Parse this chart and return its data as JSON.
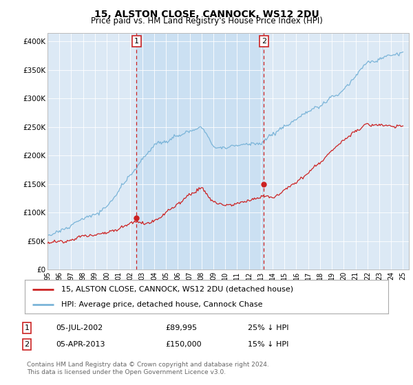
{
  "title": "15, ALSTON CLOSE, CANNOCK, WS12 2DU",
  "subtitle": "Price paid vs. HM Land Registry's House Price Index (HPI)",
  "ylabel_ticks": [
    "£0",
    "£50K",
    "£100K",
    "£150K",
    "£200K",
    "£250K",
    "£300K",
    "£350K",
    "£400K"
  ],
  "ylim": [
    0,
    415000
  ],
  "xlim_start": 1995.0,
  "xlim_end": 2025.5,
  "hpi_color": "#7ab4d8",
  "price_color": "#cc2222",
  "shade_color": "#c8dff2",
  "marker1_x": 2002.52,
  "marker1_y": 89995,
  "marker2_x": 2013.27,
  "marker2_y": 150000,
  "legend_line1": "15, ALSTON CLOSE, CANNOCK, WS12 2DU (detached house)",
  "legend_line2": "HPI: Average price, detached house, Cannock Chase",
  "marker1_date": "05-JUL-2002",
  "marker1_price": "£89,995",
  "marker1_hpi": "25% ↓ HPI",
  "marker2_date": "05-APR-2013",
  "marker2_price": "£150,000",
  "marker2_hpi": "15% ↓ HPI",
  "footer": "Contains HM Land Registry data © Crown copyright and database right 2024.\nThis data is licensed under the Open Government Licence v3.0.",
  "background_color": "#ffffff",
  "plot_bg_color": "#dce9f5"
}
